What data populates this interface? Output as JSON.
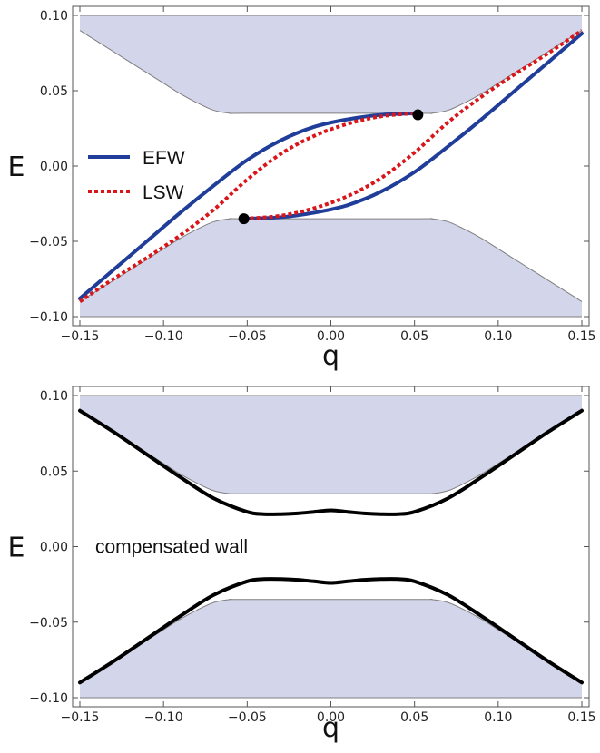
{
  "chart_data": [
    {
      "type": "line",
      "xlabel": "q",
      "ylabel": "E",
      "xlim": [
        -0.15,
        0.15
      ],
      "ylim": [
        -0.1,
        0.1
      ],
      "x_ticks": [
        -0.15,
        -0.1,
        -0.05,
        0.0,
        0.05,
        0.1,
        0.15
      ],
      "x_tick_labels": [
        "−0.15",
        "−0.10",
        "−0.05",
        "0.00",
        "0.05",
        "0.10",
        "0.15"
      ],
      "y_ticks": [
        0.1,
        0.05,
        0.0,
        -0.05,
        -0.1
      ],
      "y_tick_labels": [
        "0.10",
        "0.05",
        "0.00",
        "−0.05",
        "−0.10"
      ],
      "grid": false,
      "legend_position": "left",
      "shaded_bands": {
        "gap_edge_upper_x": [
          -0.15,
          -0.14,
          -0.13,
          -0.12,
          -0.11,
          -0.1,
          -0.09,
          -0.08,
          -0.07,
          -0.06,
          -0.05,
          0.05,
          0.06,
          0.07,
          0.08,
          0.09,
          0.1,
          0.11,
          0.12,
          0.13,
          0.14,
          0.15
        ],
        "gap_edge_upper_E": [
          0.09,
          0.083,
          0.076,
          0.069,
          0.062,
          0.055,
          0.048,
          0.042,
          0.037,
          0.035,
          0.035,
          0.035,
          0.035,
          0.037,
          0.042,
          0.048,
          0.055,
          0.062,
          0.069,
          0.076,
          0.083,
          0.09
        ],
        "band_top_E": 0.1,
        "band_bottom_E": -0.1,
        "color": "#d3d5ea",
        "edge_color": "#7f7f7f"
      },
      "series": [
        {
          "name": "EFW",
          "color": "#1f3d99",
          "style": "solid",
          "branches": [
            {
              "x": [
                -0.15,
                -0.13,
                -0.11,
                -0.09,
                -0.07,
                -0.05,
                -0.03,
                -0.01,
                0.01,
                0.03,
                0.05
              ],
              "y": [
                -0.088,
                -0.069,
                -0.05,
                -0.031,
                -0.013,
                0.004,
                0.017,
                0.026,
                0.031,
                0.034,
                0.035
              ]
            },
            {
              "x": [
                -0.052,
                -0.03,
                -0.01,
                0.01,
                0.03,
                0.05,
                0.07,
                0.09,
                0.11,
                0.13,
                0.15
              ],
              "y": [
                -0.035,
                -0.034,
                -0.031,
                -0.026,
                -0.017,
                -0.004,
                0.013,
                0.031,
                0.05,
                0.069,
                0.088
              ]
            }
          ]
        },
        {
          "name": "LSW",
          "color": "#d9161a",
          "style": "dotted",
          "branches": [
            {
              "x": [
                -0.15,
                -0.13,
                -0.11,
                -0.09,
                -0.07,
                -0.05,
                -0.03,
                -0.01,
                0.01,
                0.03,
                0.05
              ],
              "y": [
                -0.09,
                -0.075,
                -0.061,
                -0.046,
                -0.029,
                -0.009,
                0.008,
                0.02,
                0.028,
                0.033,
                0.035
              ]
            },
            {
              "x": [
                -0.052,
                -0.03,
                -0.01,
                0.01,
                0.03,
                0.05,
                0.07,
                0.09,
                0.11,
                0.13,
                0.15
              ],
              "y": [
                -0.035,
                -0.033,
                -0.028,
                -0.02,
                -0.008,
                0.009,
                0.029,
                0.046,
                0.061,
                0.075,
                0.09
              ]
            }
          ]
        }
      ],
      "points": [
        {
          "x": 0.052,
          "y": 0.034
        },
        {
          "x": -0.052,
          "y": -0.035
        }
      ]
    },
    {
      "type": "line",
      "xlabel": "q",
      "ylabel": "E",
      "xlim": [
        -0.15,
        0.15
      ],
      "ylim": [
        -0.1,
        0.1
      ],
      "x_ticks": [
        -0.15,
        -0.1,
        -0.05,
        0.0,
        0.05,
        0.1,
        0.15
      ],
      "x_tick_labels": [
        "−0.15",
        "−0.10",
        "−0.05",
        "0.00",
        "0.05",
        "0.10",
        "0.15"
      ],
      "y_ticks": [
        0.1,
        0.05,
        0.0,
        -0.05,
        -0.1
      ],
      "y_tick_labels": [
        "0.10",
        "0.05",
        "0.00",
        "−0.05",
        "−0.10"
      ],
      "grid": false,
      "annotation": "compensated wall",
      "shaded_bands": {
        "gap_edge_upper_x": [
          -0.15,
          -0.14,
          -0.13,
          -0.12,
          -0.11,
          -0.1,
          -0.09,
          -0.08,
          -0.07,
          -0.06,
          -0.05,
          0.05,
          0.06,
          0.07,
          0.08,
          0.09,
          0.1,
          0.11,
          0.12,
          0.13,
          0.14,
          0.15
        ],
        "gap_edge_upper_E": [
          0.09,
          0.083,
          0.076,
          0.069,
          0.062,
          0.055,
          0.048,
          0.042,
          0.037,
          0.035,
          0.035,
          0.035,
          0.035,
          0.037,
          0.042,
          0.048,
          0.055,
          0.062,
          0.069,
          0.076,
          0.083,
          0.09
        ],
        "band_top_E": 0.1,
        "band_bottom_E": -0.1,
        "color": "#d3d5ea",
        "edge_color": "#7f7f7f"
      },
      "series": [
        {
          "color": "#000000",
          "style": "solid",
          "branches": [
            {
              "x": [
                -0.15,
                -0.13,
                -0.11,
                -0.09,
                -0.07,
                -0.05,
                -0.04,
                -0.03,
                -0.02,
                -0.01,
                0.0,
                0.01,
                0.02,
                0.03,
                0.04,
                0.05,
                0.07,
                0.09,
                0.11,
                0.13,
                0.15
              ],
              "y": [
                0.09,
                0.076,
                0.061,
                0.046,
                0.032,
                0.023,
                0.0215,
                0.0215,
                0.022,
                0.023,
                0.024,
                0.023,
                0.022,
                0.0215,
                0.0215,
                0.023,
                0.032,
                0.046,
                0.061,
                0.076,
                0.09
              ]
            },
            {
              "x": [
                -0.15,
                -0.13,
                -0.11,
                -0.09,
                -0.07,
                -0.05,
                -0.04,
                -0.03,
                -0.02,
                -0.01,
                0.0,
                0.01,
                0.02,
                0.03,
                0.04,
                0.05,
                0.07,
                0.09,
                0.11,
                0.13,
                0.15
              ],
              "y": [
                -0.09,
                -0.076,
                -0.061,
                -0.046,
                -0.032,
                -0.023,
                -0.0215,
                -0.0215,
                -0.022,
                -0.023,
                -0.024,
                -0.023,
                -0.022,
                -0.0215,
                -0.0215,
                -0.023,
                -0.032,
                -0.046,
                -0.061,
                -0.076,
                -0.09
              ]
            }
          ]
        }
      ]
    }
  ]
}
